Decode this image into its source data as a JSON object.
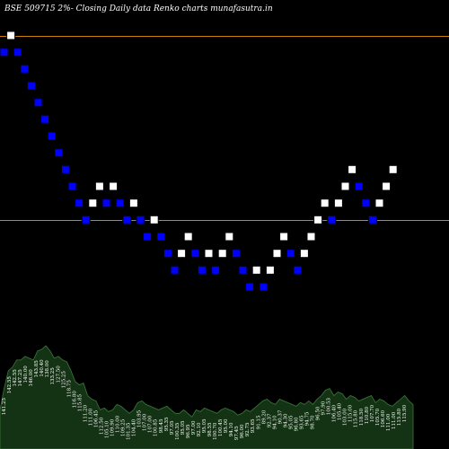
{
  "chart_data": {
    "type": "renko",
    "title": "BSE 509715 2%-  Closing Daily data  Renko  charts munafasutra.in",
    "colors": {
      "background": "#000000",
      "up_brick": "#ffffff",
      "down_brick": "#0000ff",
      "brick_border": "#000000",
      "reference_line": "#cc8400",
      "volume_fill": "#143214",
      "volume_stroke": "#3a7a3a"
    },
    "reference_lines": [
      146.5,
      115.8
    ],
    "ylim": [
      103,
      149.5
    ],
    "bricks": [
      {
        "dir": "down",
        "value": 143.7
      },
      {
        "dir": "up",
        "value": 146.5
      },
      {
        "dir": "down",
        "value": 143.7
      },
      {
        "dir": "down",
        "value": 140.9
      },
      {
        "dir": "down",
        "value": 138.1
      },
      {
        "dir": "down",
        "value": 135.3
      },
      {
        "dir": "down",
        "value": 132.5
      },
      {
        "dir": "down",
        "value": 129.7
      },
      {
        "dir": "down",
        "value": 126.9
      },
      {
        "dir": "down",
        "value": 124.1
      },
      {
        "dir": "down",
        "value": 121.3
      },
      {
        "dir": "down",
        "value": 118.5
      },
      {
        "dir": "down",
        "value": 115.7
      },
      {
        "dir": "up",
        "value": 118.5
      },
      {
        "dir": "up",
        "value": 121.3
      },
      {
        "dir": "down",
        "value": 118.5
      },
      {
        "dir": "up",
        "value": 121.3
      },
      {
        "dir": "down",
        "value": 118.5
      },
      {
        "dir": "down",
        "value": 115.7
      },
      {
        "dir": "up",
        "value": 118.5
      },
      {
        "dir": "down",
        "value": 115.7
      },
      {
        "dir": "down",
        "value": 112.9
      },
      {
        "dir": "up",
        "value": 115.7
      },
      {
        "dir": "down",
        "value": 112.9
      },
      {
        "dir": "down",
        "value": 110.1
      },
      {
        "dir": "down",
        "value": 107.3
      },
      {
        "dir": "up",
        "value": 110.1
      },
      {
        "dir": "up",
        "value": 112.9
      },
      {
        "dir": "down",
        "value": 110.1
      },
      {
        "dir": "down",
        "value": 107.3
      },
      {
        "dir": "up",
        "value": 110.1
      },
      {
        "dir": "down",
        "value": 107.3
      },
      {
        "dir": "up",
        "value": 110.1
      },
      {
        "dir": "up",
        "value": 112.9
      },
      {
        "dir": "down",
        "value": 110.1
      },
      {
        "dir": "down",
        "value": 107.3
      },
      {
        "dir": "down",
        "value": 104.5
      },
      {
        "dir": "up",
        "value": 107.3
      },
      {
        "dir": "down",
        "value": 104.5
      },
      {
        "dir": "up",
        "value": 107.3
      },
      {
        "dir": "up",
        "value": 110.1
      },
      {
        "dir": "up",
        "value": 112.9
      },
      {
        "dir": "down",
        "value": 110.1
      },
      {
        "dir": "down",
        "value": 107.3
      },
      {
        "dir": "up",
        "value": 110.1
      },
      {
        "dir": "up",
        "value": 112.9
      },
      {
        "dir": "up",
        "value": 115.7
      },
      {
        "dir": "up",
        "value": 118.5
      },
      {
        "dir": "down",
        "value": 115.7
      },
      {
        "dir": "up",
        "value": 118.5
      },
      {
        "dir": "up",
        "value": 121.3
      },
      {
        "dir": "up",
        "value": 124.1
      },
      {
        "dir": "down",
        "value": 121.3
      },
      {
        "dir": "down",
        "value": 118.5
      },
      {
        "dir": "down",
        "value": 115.7
      },
      {
        "dir": "up",
        "value": 118.5
      },
      {
        "dir": "up",
        "value": 121.3
      },
      {
        "dir": "up",
        "value": 124.1
      }
    ],
    "volume_labels": [
      "141.25",
      "142.55",
      "142.55",
      "147.25",
      "140.00",
      "146.00",
      "143.85",
      "140.40",
      "138.00",
      "133.25",
      "127.50",
      "125.25",
      "118.75",
      "116.80",
      "115.85",
      "111.20",
      "111.00",
      "106.45",
      "112.50",
      "105.10",
      "109.90",
      "110.00",
      "109.25",
      "101.35",
      "104.40",
      "103.95",
      "107.00",
      "107.00",
      "100.85",
      "98.45",
      "95.35",
      "97.05",
      "100.35",
      "95.05",
      "96.95",
      "97.00",
      "92.10",
      "95.05",
      "98.55",
      "100.70",
      "100.45",
      "95.00",
      "94.10",
      "97.45",
      "96.00",
      "92.75",
      "93.65",
      "91.15",
      "89.20",
      "92.37",
      "94.10",
      "90.37",
      "94.30",
      "95.05",
      "96.80",
      "93.65",
      "94.75",
      "98.70",
      "96.50",
      "97.90",
      "100.53",
      "106.40",
      "105.40",
      "103.00",
      "115.00",
      "115.80",
      "118.50",
      "110.80",
      "107.70",
      "105.70",
      "106.60",
      "111.00",
      "111.00",
      "115.80",
      "115.90"
    ],
    "volume_profile": [
      22,
      34,
      44,
      46,
      50,
      50,
      52,
      51,
      50,
      55,
      56,
      58,
      55,
      51,
      52,
      50,
      49,
      44,
      38,
      36,
      37,
      30,
      28,
      27,
      22,
      23,
      21,
      22,
      25,
      24,
      22,
      20,
      22,
      26,
      27,
      25,
      24,
      23,
      22,
      23,
      24,
      22,
      20,
      20,
      22,
      20,
      18,
      22,
      21,
      23,
      22,
      21,
      20,
      22,
      23,
      22,
      21,
      19,
      20,
      22,
      21,
      23,
      25,
      27,
      28,
      26,
      25,
      28,
      27,
      26,
      25,
      24,
      26,
      25,
      27,
      25,
      28,
      30,
      33,
      34,
      30,
      32,
      31,
      28,
      30,
      29,
      27,
      28,
      29,
      30,
      26,
      28,
      27,
      25,
      24,
      26,
      28,
      30,
      27,
      25
    ],
    "xlabel": "",
    "ylabel": ""
  }
}
